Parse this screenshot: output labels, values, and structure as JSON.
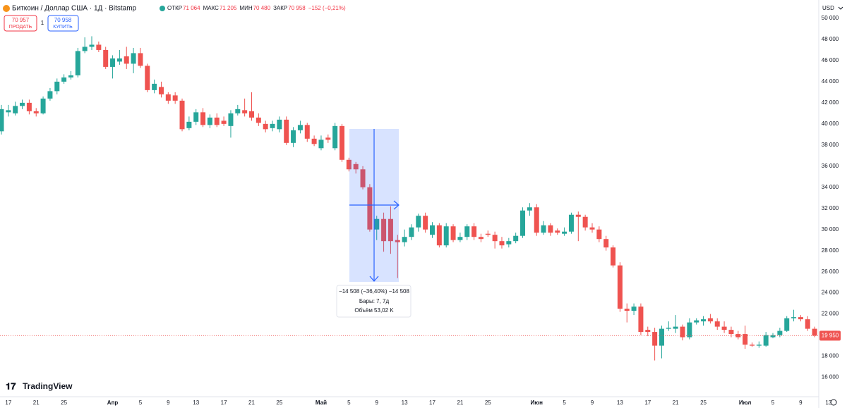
{
  "header": {
    "title": "Биткоин / Доллар США · 1Д · Bitstamp",
    "stats": [
      {
        "label": "ОТКР",
        "value": "71 064"
      },
      {
        "label": "МАКС",
        "value": "71 205"
      },
      {
        "label": "МИН",
        "value": "70 480"
      },
      {
        "label": "ЗАКР",
        "value": "70 958"
      }
    ],
    "change": "−152 (−0,21%)",
    "sell": {
      "price": "70 957",
      "label": "ПРОДАТЬ"
    },
    "spread": "1",
    "buy": {
      "price": "70 958",
      "label": "КУПИТЬ"
    },
    "currency": "USD",
    "logo": "TradingView"
  },
  "measure": {
    "line1": "−14 508 (−36,40%) −14 508",
    "line2": "Бары: 7, 7д",
    "line3": "Объём 53,02 K"
  },
  "chart_data": {
    "type": "candlestick",
    "up_color": "#26a69a",
    "down_color": "#ef5350",
    "grid": false,
    "categories": [
      null,
      "17",
      null,
      null,
      null,
      "21",
      null,
      null,
      null,
      "25",
      null,
      null,
      null,
      null,
      null,
      null,
      "Апр",
      null,
      null,
      null,
      "5",
      null,
      null,
      null,
      "9",
      null,
      null,
      null,
      "13",
      null,
      null,
      null,
      "17",
      null,
      null,
      null,
      "21",
      null,
      null,
      null,
      "25",
      null,
      null,
      null,
      null,
      null,
      "Май",
      null,
      null,
      null,
      "5",
      null,
      null,
      null,
      "9",
      null,
      null,
      null,
      "13",
      null,
      null,
      null,
      "17",
      null,
      null,
      null,
      "21",
      null,
      null,
      null,
      "25",
      null,
      null,
      null,
      null,
      null,
      null,
      "Июн",
      null,
      null,
      null,
      "5",
      null,
      null,
      null,
      "9",
      null,
      null,
      null,
      "13",
      null,
      null,
      null,
      "17",
      null,
      null,
      null,
      "21",
      null,
      null,
      null,
      "25",
      null,
      null,
      null,
      null,
      null,
      "Июл",
      null,
      null,
      null,
      "5",
      null,
      null,
      null,
      "9",
      null,
      null,
      null,
      "13"
    ],
    "open": [
      39300,
      41100,
      41000,
      41700,
      42000,
      41200,
      41000,
      42400,
      43100,
      44000,
      44400,
      44600,
      46900,
      47300,
      47500,
      47000,
      45400,
      45900,
      46400,
      45700,
      46700,
      45500,
      43200,
      43500,
      42800,
      42700,
      42200,
      39600,
      40200,
      41100,
      39900,
      40600,
      40300,
      39800,
      41000,
      41300,
      41200,
      40600,
      40000,
      39600,
      39500,
      40400,
      38200,
      39400,
      39900,
      38600,
      37700,
      38700,
      37700,
      39800,
      36600,
      36200,
      35700,
      34000,
      30000,
      31000,
      31000,
      29000,
      28800,
      29300,
      30200,
      31300,
      29500,
      30400,
      28500,
      30300,
      29000,
      29300,
      30300,
      29300,
      29600,
      29500,
      28900,
      28600,
      28900,
      29400,
      31800,
      32100,
      29700,
      30400,
      29900,
      29600,
      29800,
      31400,
      31200,
      30200,
      30000,
      29100,
      28300,
      26600,
      22500,
      22300,
      22700,
      20500,
      20300,
      19000,
      20600,
      20600,
      20800,
      19800,
      21200,
      21300,
      21600,
      21300,
      20800,
      20500,
      20100,
      20100,
      19100,
      19000,
      19000,
      19800,
      20000,
      20400,
      21600,
      21700,
      21500,
      20600,
      null,
      null
    ],
    "high": [
      41800,
      41800,
      42100,
      42300,
      42300,
      41500,
      42600,
      43400,
      44300,
      44700,
      45000,
      47200,
      48200,
      48300,
      47800,
      47300,
      46500,
      47000,
      47300,
      47200,
      47200,
      45700,
      44200,
      44000,
      43000,
      43000,
      42400,
      40700,
      41400,
      41500,
      40900,
      41000,
      40700,
      41300,
      41800,
      42400,
      43000,
      41000,
      40300,
      40300,
      40700,
      40700,
      39700,
      40300,
      40100,
      38900,
      38900,
      39000,
      40100,
      40000,
      36800,
      36400,
      36000,
      34300,
      31300,
      31600,
      32200,
      29500,
      30000,
      30500,
      31500,
      31600,
      30700,
      30600,
      30600,
      30500,
      29700,
      30500,
      30600,
      29600,
      29900,
      29800,
      29300,
      29200,
      29700,
      32100,
      32500,
      32400,
      30800,
      30600,
      30100,
      30200,
      31600,
      31700,
      31400,
      30600,
      30300,
      29400,
      28500,
      26900,
      23000,
      23000,
      23000,
      20800,
      20700,
      20900,
      21300,
      21900,
      21000,
      21600,
      21600,
      21800,
      22000,
      21600,
      21300,
      20800,
      20400,
      20900,
      19300,
      19400,
      20300,
      20200,
      20700,
      21800,
      22400,
      21900,
      21800,
      20800,
      null,
      null
    ],
    "low": [
      39000,
      40700,
      40800,
      41400,
      40900,
      40700,
      40900,
      42200,
      42800,
      43800,
      44200,
      44400,
      46700,
      47000,
      46800,
      45200,
      44300,
      45600,
      45200,
      44800,
      45300,
      43000,
      42900,
      42500,
      41900,
      41900,
      39300,
      39400,
      39900,
      39700,
      39600,
      39700,
      39800,
      38700,
      40800,
      40700,
      40300,
      39800,
      39200,
      39300,
      39200,
      38000,
      37800,
      39100,
      38300,
      37900,
      37500,
      38200,
      37500,
      36400,
      35500,
      35300,
      33800,
      29800,
      29000,
      27900,
      27700,
      25400,
      28400,
      29000,
      29800,
      29700,
      29200,
      28300,
      28300,
      28800,
      28800,
      29000,
      29000,
      28800,
      29300,
      28200,
      28200,
      28300,
      28700,
      29200,
      31300,
      29400,
      29500,
      29400,
      29500,
      29400,
      29600,
      28900,
      29900,
      29700,
      28800,
      28000,
      26400,
      22200,
      21200,
      21900,
      20000,
      19900,
      17600,
      17800,
      20400,
      20200,
      19500,
      19600,
      21000,
      20900,
      21100,
      20500,
      20200,
      19800,
      19600,
      18700,
      18900,
      18800,
      18900,
      19700,
      19800,
      20300,
      21300,
      21300,
      20400,
      19800,
      null,
      null
    ],
    "close": [
      41400,
      41300,
      41700,
      42000,
      41200,
      41000,
      42400,
      43100,
      44000,
      44400,
      44600,
      46900,
      47300,
      47500,
      47000,
      45400,
      46200,
      46200,
      45700,
      46700,
      45500,
      43200,
      43800,
      42800,
      42200,
      42200,
      39500,
      40200,
      41100,
      39900,
      40600,
      39900,
      40000,
      41000,
      41400,
      41000,
      40600,
      40100,
      39500,
      40000,
      40400,
      38200,
      39400,
      39900,
      38600,
      38100,
      38500,
      38500,
      39800,
      36600,
      35700,
      35700,
      34000,
      30000,
      31000,
      28900,
      28900,
      28800,
      29300,
      30200,
      31300,
      30000,
      30400,
      28500,
      30300,
      29000,
      29300,
      30300,
      29300,
      29100,
      29500,
      28900,
      28500,
      28900,
      29400,
      31800,
      32100,
      29700,
      30400,
      29700,
      29700,
      29800,
      31400,
      31200,
      30200,
      30000,
      29100,
      28300,
      26600,
      22500,
      22300,
      22700,
      20300,
      20300,
      19000,
      20600,
      20700,
      20800,
      19800,
      21200,
      21400,
      21500,
      21300,
      20800,
      20500,
      20100,
      19800,
      19100,
      19000,
      19100,
      20000,
      20000,
      20400,
      21600,
      21700,
      21500,
      20600,
      19950,
      null,
      null
    ],
    "last_price": {
      "value": 19950,
      "label": "19 950"
    },
    "ylim": [
      14900,
      51333
    ],
    "yticks": [
      {
        "value": 16000,
        "label": "16 000"
      },
      {
        "value": 18000,
        "label": "18 000"
      },
      {
        "value": 20000,
        "label": "20 000"
      },
      {
        "value": 22000,
        "label": "22 000"
      },
      {
        "value": 24000,
        "label": "24 000"
      },
      {
        "value": 26000,
        "label": "26 000"
      },
      {
        "value": 28000,
        "label": "28 000"
      },
      {
        "value": 30000,
        "label": "30 000"
      },
      {
        "value": 32000,
        "label": "32 000"
      },
      {
        "value": 34000,
        "label": "34 000"
      },
      {
        "value": 36000,
        "label": "36 000"
      },
      {
        "value": 38000,
        "label": "38 000"
      },
      {
        "value": 40000,
        "label": "40 000"
      },
      {
        "value": 42000,
        "label": "42 000"
      },
      {
        "value": 44000,
        "label": "44 000"
      },
      {
        "value": 46000,
        "label": "46 000"
      },
      {
        "value": 48000,
        "label": "48 000"
      },
      {
        "value": 50000,
        "label": "50 000"
      }
    ]
  }
}
